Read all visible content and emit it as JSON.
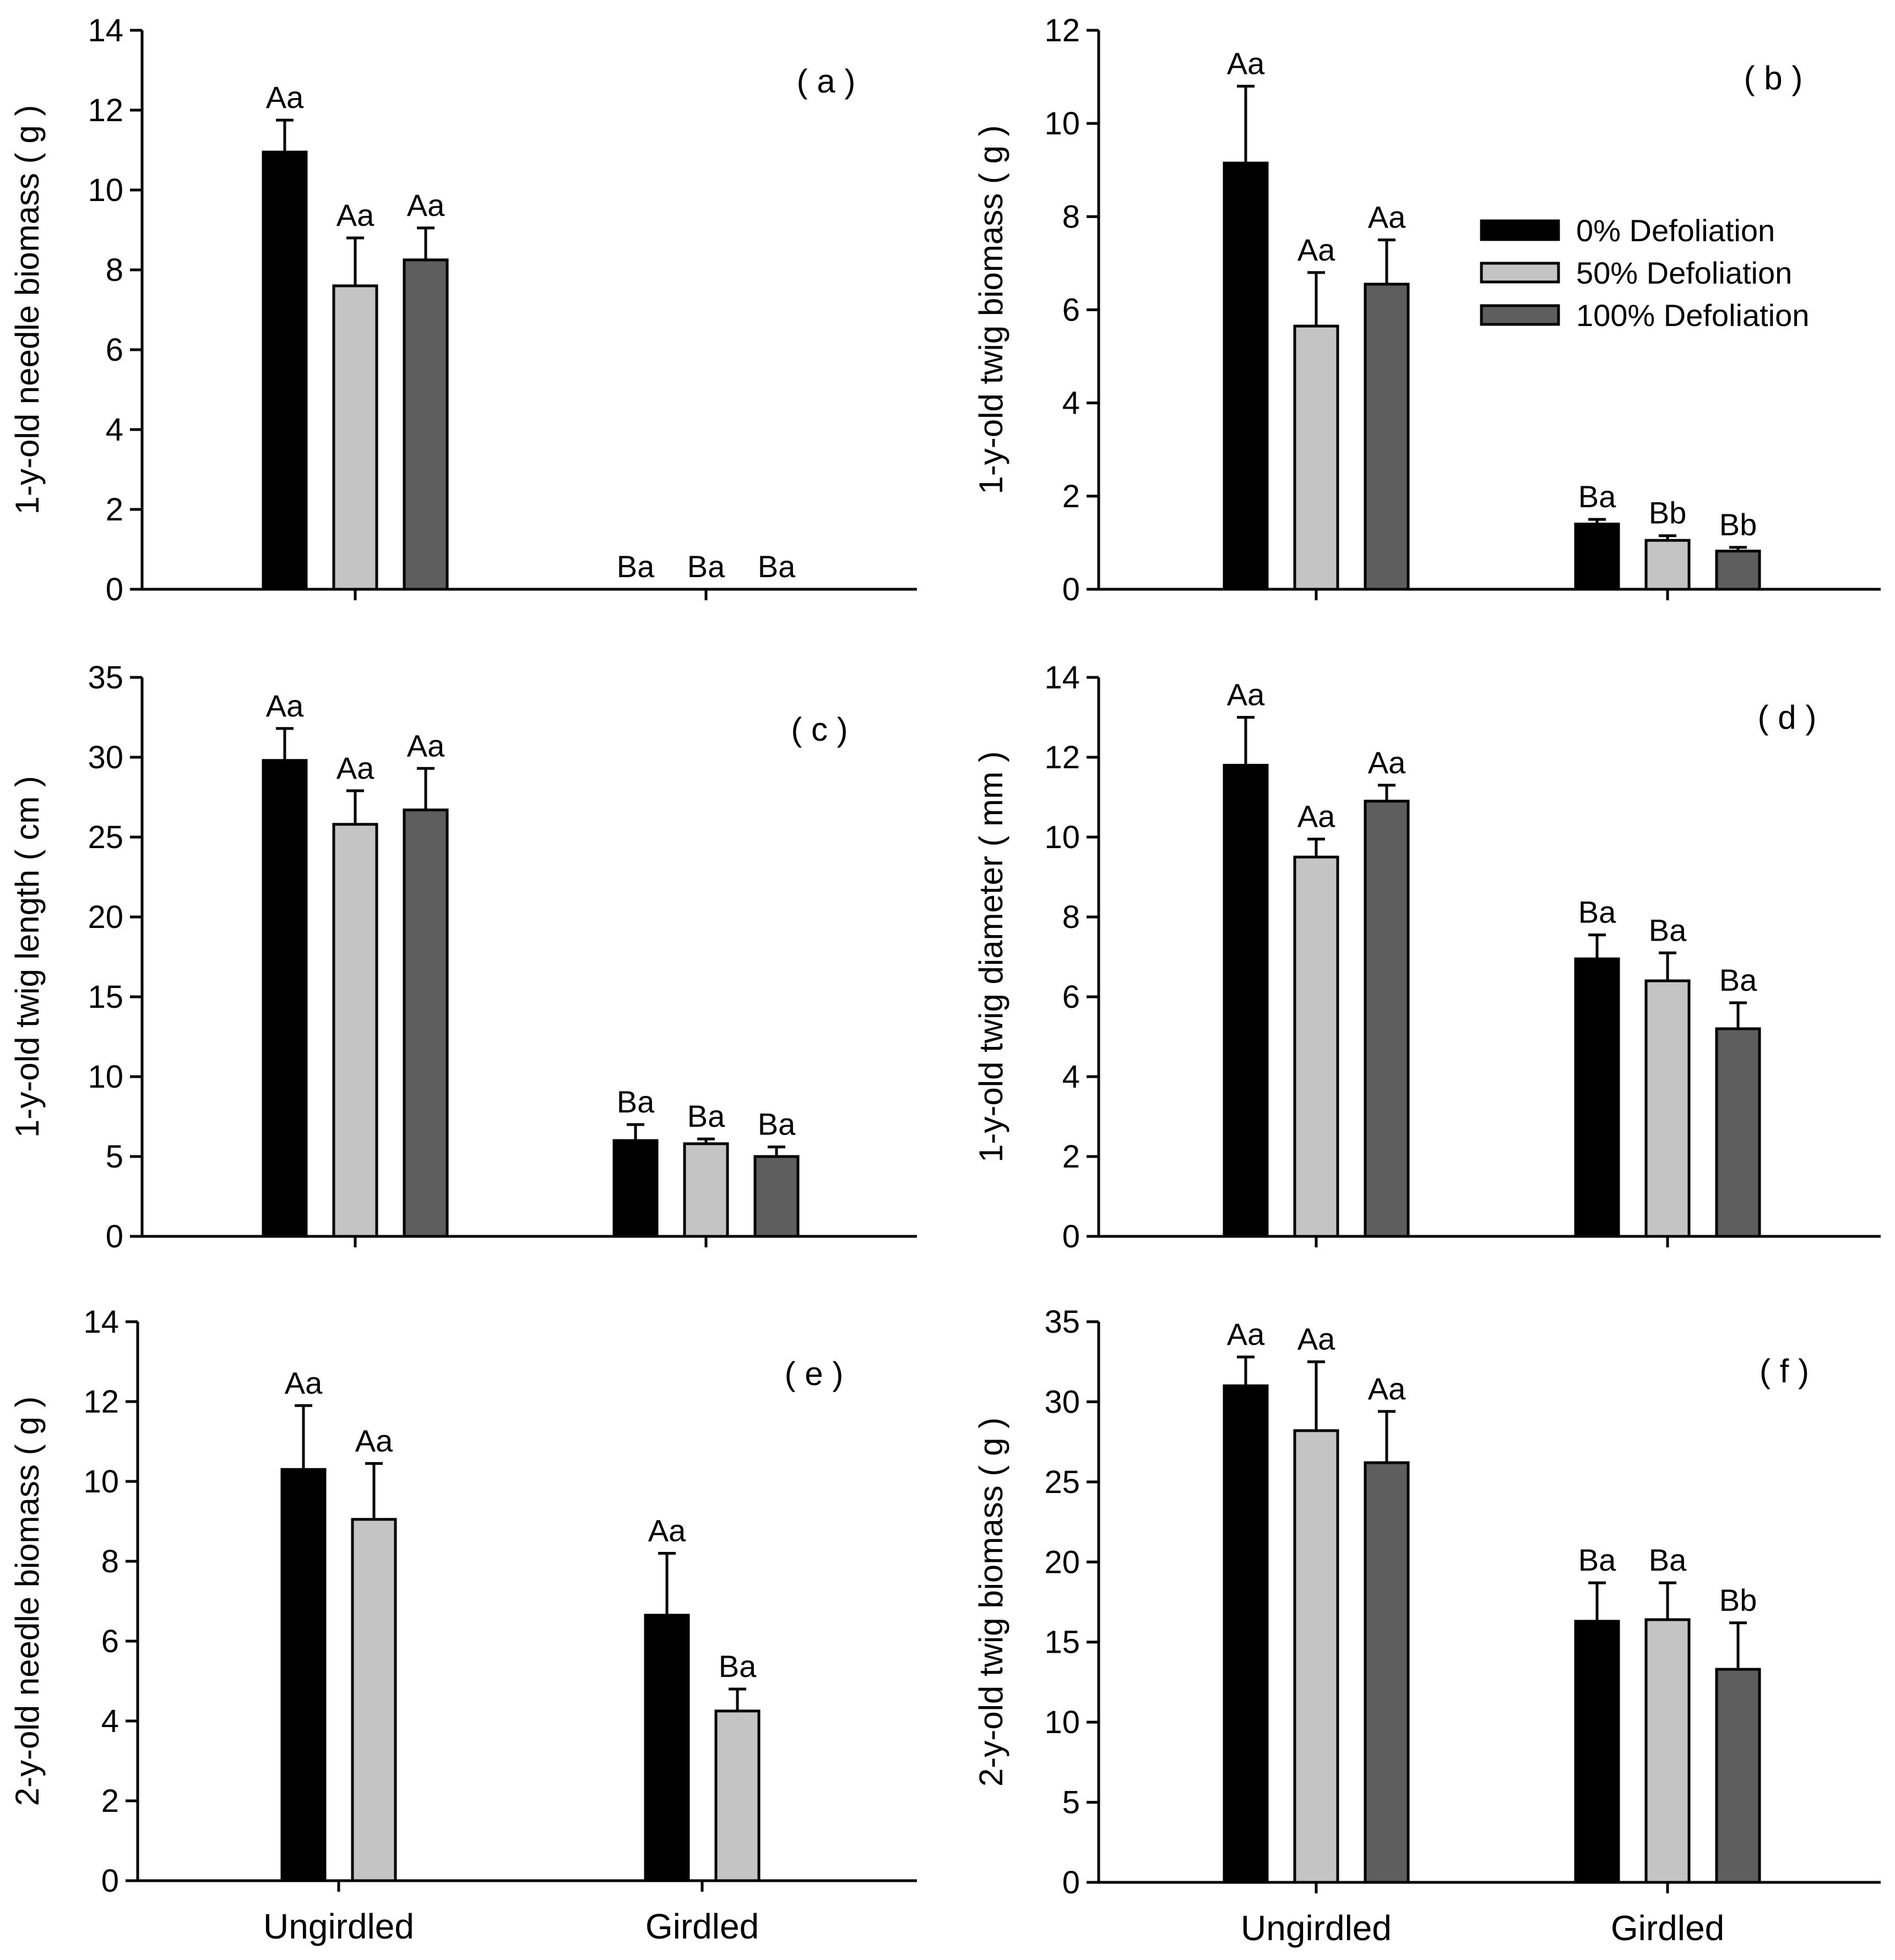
{
  "legend": {
    "items": [
      {
        "label": "0% Defoliation",
        "color": "#000000"
      },
      {
        "label": "50% Defoliation",
        "color": "#c4c4c4"
      },
      {
        "label": "100% Defoliation",
        "color": "#5e5e5e"
      }
    ]
  },
  "chart_data": [
    {
      "id": "a",
      "type": "bar",
      "panel_label": "( a )",
      "ylabel": "1-y-old needle biomass ( g )",
      "xlabel": "",
      "ylim": [
        0,
        14
      ],
      "yticks": [
        0,
        2,
        4,
        6,
        8,
        10,
        12,
        14
      ],
      "categories": [
        "Ungirdled",
        "Girdled"
      ],
      "show_category_labels": false,
      "series": [
        {
          "name": "0% Defoliation",
          "values": [
            10.95,
            0
          ],
          "errors": [
            0.8,
            0
          ],
          "labels": [
            "Aa",
            "Ba"
          ]
        },
        {
          "name": "50% Defoliation",
          "values": [
            7.6,
            0
          ],
          "errors": [
            1.2,
            0
          ],
          "labels": [
            "Aa",
            "Ba"
          ]
        },
        {
          "name": "100% Defoliation",
          "values": [
            8.25,
            0
          ],
          "errors": [
            0.8,
            0
          ],
          "labels": [
            "Aa",
            "Ba"
          ]
        }
      ]
    },
    {
      "id": "b",
      "type": "bar",
      "panel_label": "( b )",
      "ylabel": "1-y-old twig biomass ( g )",
      "xlabel": "",
      "ylim": [
        0,
        12
      ],
      "yticks": [
        0,
        2,
        4,
        6,
        8,
        10,
        12
      ],
      "categories": [
        "Ungirdled",
        "Girdled"
      ],
      "show_category_labels": false,
      "legend": true,
      "series": [
        {
          "name": "0% Defoliation",
          "values": [
            9.15,
            1.4
          ],
          "errors": [
            1.65,
            0.1
          ],
          "labels": [
            "Aa",
            "Ba"
          ]
        },
        {
          "name": "50% Defoliation",
          "values": [
            5.65,
            1.05
          ],
          "errors": [
            1.15,
            0.1
          ],
          "labels": [
            "Aa",
            "Bb"
          ]
        },
        {
          "name": "100% Defoliation",
          "values": [
            6.55,
            0.82
          ],
          "errors": [
            0.95,
            0.08
          ],
          "labels": [
            "Aa",
            "Bb"
          ]
        }
      ]
    },
    {
      "id": "c",
      "type": "bar",
      "panel_label": "( c )",
      "ylabel": "1-y-old twig length ( cm )",
      "xlabel": "",
      "ylim": [
        0,
        35
      ],
      "yticks": [
        0,
        5,
        10,
        15,
        20,
        25,
        30,
        35
      ],
      "categories": [
        "Ungirdled",
        "Girdled"
      ],
      "show_category_labels": false,
      "series": [
        {
          "name": "0% Defoliation",
          "values": [
            29.8,
            6.0
          ],
          "errors": [
            2.0,
            1.0
          ],
          "labels": [
            "Aa",
            "Ba"
          ]
        },
        {
          "name": "50% Defoliation",
          "values": [
            25.8,
            5.8
          ],
          "errors": [
            2.1,
            0.3
          ],
          "labels": [
            "Aa",
            "Ba"
          ]
        },
        {
          "name": "100% Defoliation",
          "values": [
            26.7,
            5.0
          ],
          "errors": [
            2.6,
            0.6
          ],
          "labels": [
            "Aa",
            "Ba"
          ]
        }
      ]
    },
    {
      "id": "d",
      "type": "bar",
      "panel_label": "( d )",
      "ylabel": "1-y-old twig diameter ( mm )",
      "xlabel": "",
      "ylim": [
        0,
        14
      ],
      "yticks": [
        0,
        2,
        4,
        6,
        8,
        10,
        12,
        14
      ],
      "categories": [
        "Ungirdled",
        "Girdled"
      ],
      "show_category_labels": false,
      "series": [
        {
          "name": "0% Defoliation",
          "values": [
            11.8,
            6.95
          ],
          "errors": [
            1.2,
            0.6
          ],
          "labels": [
            "Aa",
            "Ba"
          ]
        },
        {
          "name": "50% Defoliation",
          "values": [
            9.5,
            6.4
          ],
          "errors": [
            0.45,
            0.7
          ],
          "labels": [
            "Aa",
            "Ba"
          ]
        },
        {
          "name": "100% Defoliation",
          "values": [
            10.9,
            5.2
          ],
          "errors": [
            0.4,
            0.65
          ],
          "labels": [
            "Aa",
            "Ba"
          ]
        }
      ]
    },
    {
      "id": "e",
      "type": "bar",
      "panel_label": "( e )",
      "ylabel": "2-y-old needle biomass ( g )",
      "xlabel": "",
      "ylim": [
        0,
        14
      ],
      "yticks": [
        0,
        2,
        4,
        6,
        8,
        10,
        12,
        14
      ],
      "categories": [
        "Ungirdled",
        "Girdled"
      ],
      "show_category_labels": true,
      "series": [
        {
          "name": "0% Defoliation",
          "values": [
            10.3,
            6.65
          ],
          "errors": [
            1.6,
            1.55
          ],
          "labels": [
            "Aa",
            "Aa"
          ]
        },
        {
          "name": "50% Defoliation",
          "values": [
            9.05,
            4.25
          ],
          "errors": [
            1.4,
            0.55
          ],
          "labels": [
            "Aa",
            "Ba"
          ]
        }
      ]
    },
    {
      "id": "f",
      "type": "bar",
      "panel_label": "( f )",
      "ylabel": "2-y-old twig biomass ( g )",
      "xlabel": "",
      "ylim": [
        0,
        35
      ],
      "yticks": [
        0,
        5,
        10,
        15,
        20,
        25,
        30,
        35
      ],
      "categories": [
        "Ungirdled",
        "Girdled"
      ],
      "show_category_labels": true,
      "series": [
        {
          "name": "0% Defoliation",
          "values": [
            31.0,
            16.3
          ],
          "errors": [
            1.8,
            2.4
          ],
          "labels": [
            "Aa",
            "Ba"
          ]
        },
        {
          "name": "50% Defoliation",
          "values": [
            28.2,
            16.4
          ],
          "errors": [
            4.3,
            2.3
          ],
          "labels": [
            "Aa",
            "Ba"
          ]
        },
        {
          "name": "100% Defoliation",
          "values": [
            26.2,
            13.3
          ],
          "errors": [
            3.2,
            2.9
          ],
          "labels": [
            "Aa",
            "Bb"
          ]
        }
      ]
    }
  ]
}
